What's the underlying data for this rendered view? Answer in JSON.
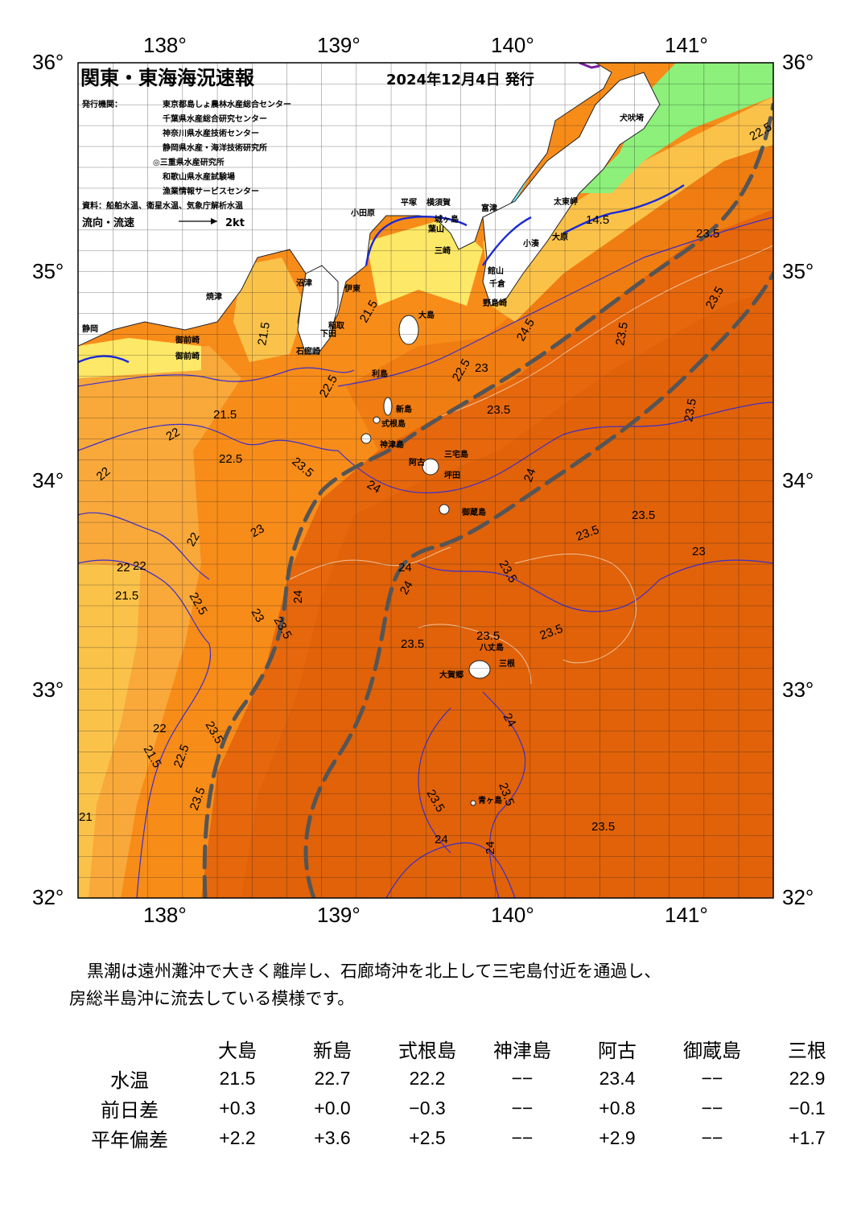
{
  "header": {
    "title": "関東・東海海況速報",
    "date": "2024年12月4日 発行",
    "issuers_label": "発行機関：",
    "issuers": [
      "東京都島しょ農林水産総合センター",
      "千葉県水産総合研究センター",
      "神奈川県水産技術センター",
      "静岡県水産・海洋技術研究所",
      "◎三重県水産研究所",
      "和歌山県水産試験場",
      "漁業情報サービスセンター"
    ],
    "sources": "資料：船舶水温、衛星水温、気象庁解析水温",
    "flow_legend_label": "流向・流速",
    "flow_legend_unit": "2kt"
  },
  "axes": {
    "lon_labels": [
      "138°",
      "139°",
      "140°",
      "141°"
    ],
    "lat_labels": [
      "36°",
      "35°",
      "34°",
      "33°",
      "32°"
    ],
    "lon_range": [
      137.5,
      141.5
    ],
    "lat_range": [
      32,
      36
    ]
  },
  "place_labels": {
    "shizuoka": "静岡",
    "omaezaki": "御前崎",
    "yaizu": "焼津",
    "numazu": "沼津",
    "ito": "伊東",
    "shimoda": "下田",
    "irozaki": "石廊崎",
    "inatori": "稲取",
    "odawara": "小田原",
    "hiratsuka": "平塚",
    "yokosuka": "横須賀",
    "hayama": "葉山",
    "jogashima": "城ヶ島",
    "misaki": "三崎",
    "futtsu": "富津",
    "tateyama": "館山",
    "chikura": "千倉",
    "katsuura": "勝浦",
    "ohara": "大原",
    "kominato": "小湊",
    "taitomisaki": "太東岬",
    "inubozaki": "犬吠埼",
    "awanoshirahama": "野島崎",
    "oshima": "大島",
    "toshima": "利島",
    "niijima": "新島",
    "shikinejima": "式根島",
    "kozushima": "神津島",
    "miyakejima": "三宅島",
    "ako": "阿古",
    "tsubota": "坪田",
    "mikurajima": "御蔵島",
    "hachijojima": "八丈島",
    "okago": "大賀郷",
    "mitsune": "三根",
    "aogashima": "青ヶ島"
  },
  "contours": {
    "c21_5": "21.5",
    "c22": "22",
    "c22_5": "22.5",
    "c23": "23",
    "c23_5": "23.5",
    "c24": "24",
    "c24_5": "24.5",
    "c21": "21",
    "c14_5": "14.5"
  },
  "colors": {
    "warm_deep": "#e6670c",
    "warm_mid": "#f07d12",
    "warm": "#f88c19",
    "orange_light": "#f9a83a",
    "yellow_orange": "#fbc24a",
    "yellow": "#fde867",
    "green": "#8cf07a",
    "cyan": "#6ef0ff",
    "kuroshio_axis": "#555555",
    "contour": "#3b2fc9",
    "coast_current": "#1a2ad6"
  },
  "summary": {
    "text_line1": "黒潮は遠州灘沖で大きく離岸し、石廊埼沖を北上して三宅島付近を通過し、",
    "text_line2": "房総半島沖に流去している模様です。"
  },
  "obs_table": {
    "stations": [
      "大島",
      "新島",
      "式根島",
      "神津島",
      "阿古",
      "御蔵島",
      "三根"
    ],
    "rows": [
      {
        "label": "水温",
        "values": [
          "21.5",
          "22.7",
          "22.2",
          "−−",
          "23.4",
          "−−",
          "22.9"
        ]
      },
      {
        "label": "前日差",
        "values": [
          "+0.3",
          "+0.0",
          "−0.3",
          "−−",
          "+0.8",
          "−−",
          "−0.1"
        ]
      },
      {
        "label": "平年偏差",
        "values": [
          "+2.2",
          "+3.6",
          "+2.5",
          "−−",
          "+2.9",
          "−−",
          "+1.7"
        ]
      }
    ]
  }
}
